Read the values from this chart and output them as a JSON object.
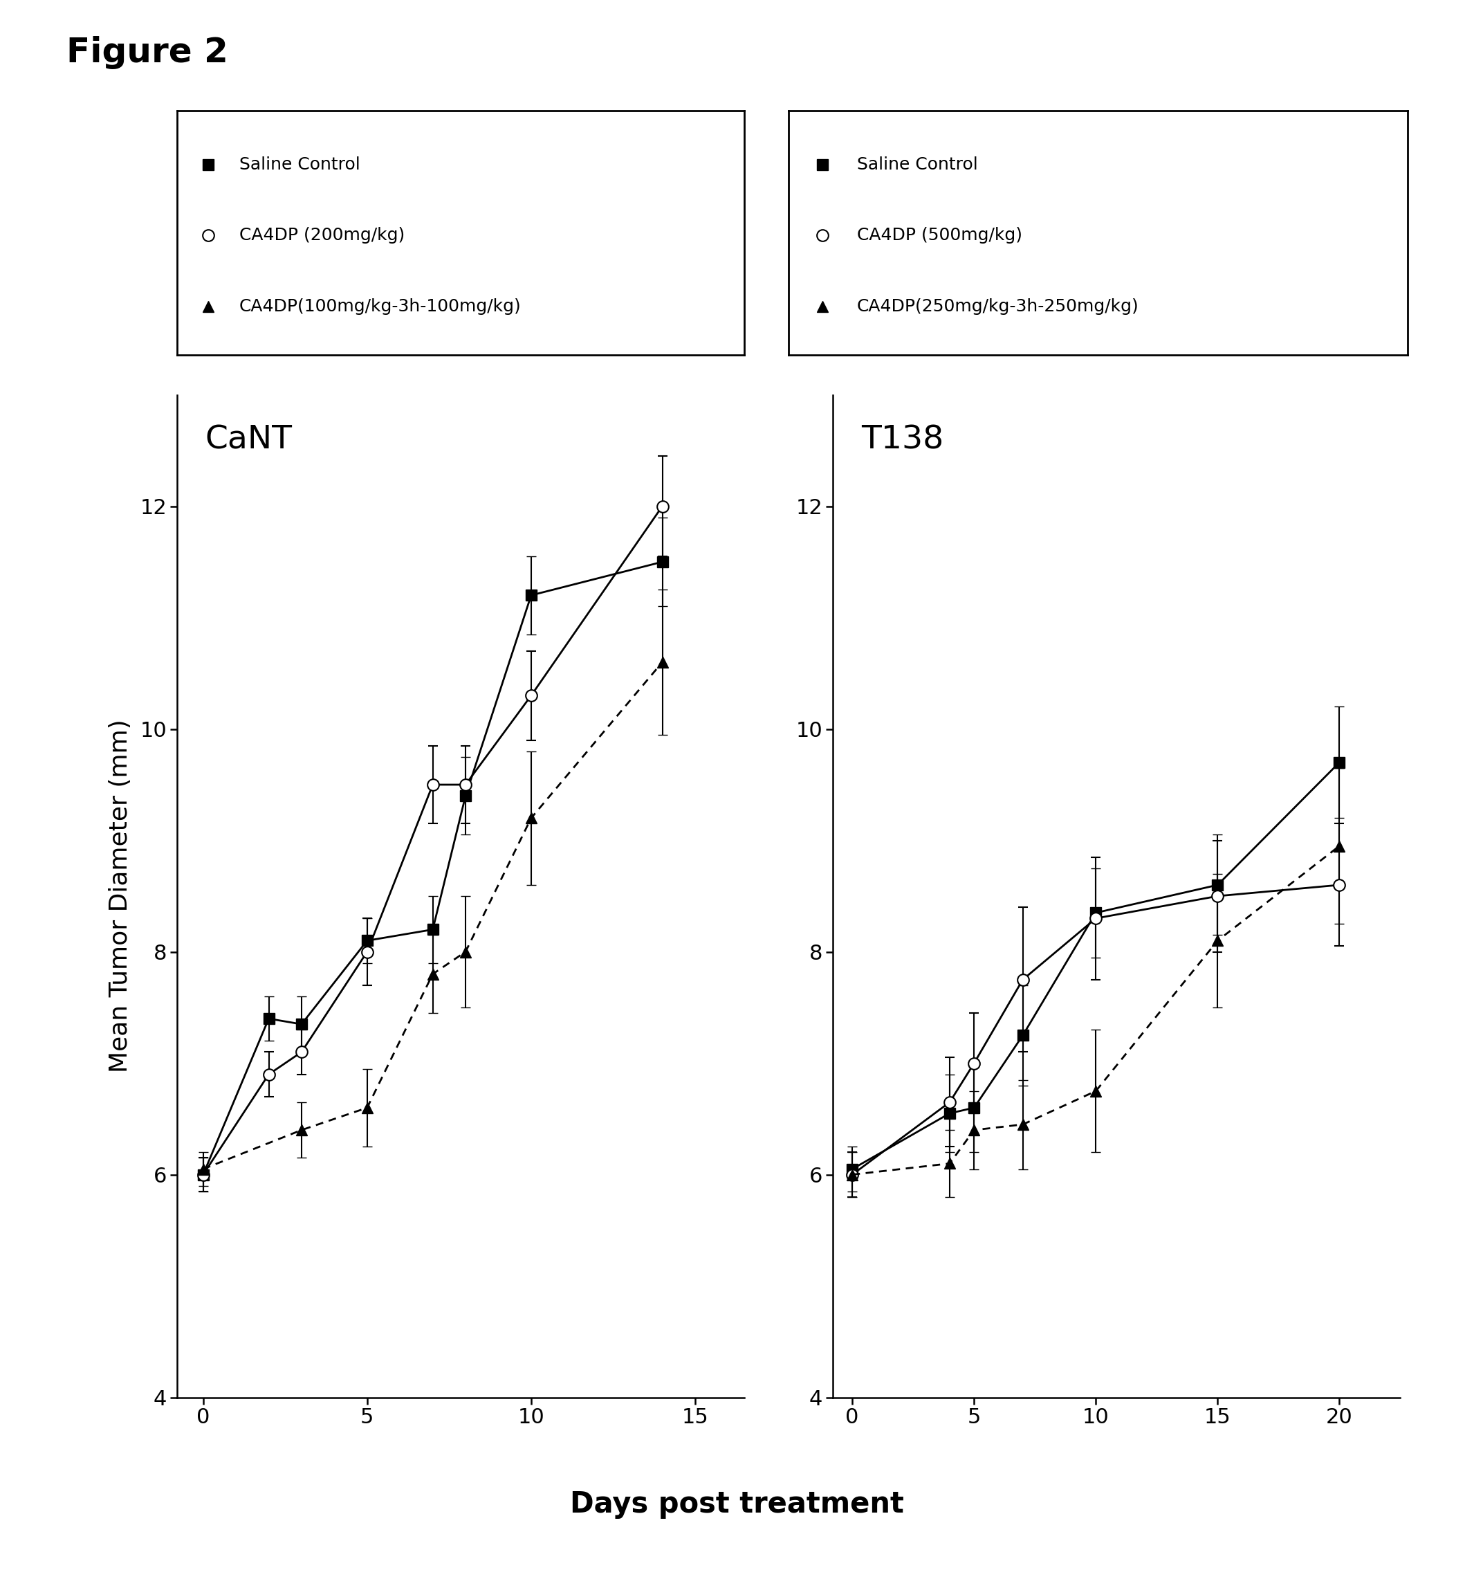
{
  "figure_title": "Figure 2",
  "xlabel": "Days post treatment",
  "ylabel": "Mean Tumor Diameter (mm)",
  "left_panel": {
    "title": "CaNT",
    "xlim": [
      -0.8,
      16.5
    ],
    "ylim": [
      4,
      13
    ],
    "yticks": [
      4,
      6,
      8,
      10,
      12
    ],
    "xticks": [
      0,
      5,
      10,
      15
    ],
    "saline": {
      "x": [
        0,
        2,
        3,
        5,
        7,
        8,
        10,
        14
      ],
      "y": [
        6.0,
        7.4,
        7.35,
        8.1,
        8.2,
        9.4,
        11.2,
        11.5
      ],
      "yerr": [
        0.15,
        0.2,
        0.25,
        0.2,
        0.3,
        0.35,
        0.35,
        0.4
      ]
    },
    "ca4dp_single": {
      "x": [
        0,
        2,
        3,
        5,
        7,
        8,
        10,
        14
      ],
      "y": [
        6.0,
        6.9,
        7.1,
        8.0,
        9.5,
        9.5,
        10.3,
        12.0
      ],
      "yerr": [
        0.15,
        0.2,
        0.2,
        0.3,
        0.35,
        0.35,
        0.4,
        0.45
      ]
    },
    "ca4dp_split": {
      "x": [
        0,
        3,
        5,
        7,
        8,
        10,
        14
      ],
      "y": [
        6.05,
        6.4,
        6.6,
        7.8,
        8.0,
        9.2,
        10.6
      ],
      "yerr": [
        0.15,
        0.25,
        0.35,
        0.35,
        0.5,
        0.6,
        0.65
      ]
    },
    "legend": {
      "saline": "Saline Control",
      "single": "CA4DP (200mg/kg)",
      "split": "CA4DP(100mg/kg-3h-100mg/kg)"
    }
  },
  "right_panel": {
    "title": "T138",
    "xlim": [
      -0.8,
      22.5
    ],
    "ylim": [
      4,
      13
    ],
    "yticks": [
      4,
      6,
      8,
      10,
      12
    ],
    "xticks": [
      0,
      5,
      10,
      15,
      20
    ],
    "saline": {
      "x": [
        0,
        4,
        5,
        7,
        10,
        15,
        20
      ],
      "y": [
        6.05,
        6.55,
        6.6,
        7.25,
        8.35,
        8.6,
        9.7
      ],
      "yerr": [
        0.2,
        0.35,
        0.4,
        0.45,
        0.4,
        0.45,
        0.5
      ]
    },
    "ca4dp_single": {
      "x": [
        0,
        4,
        5,
        7,
        10,
        15,
        20
      ],
      "y": [
        6.0,
        6.65,
        7.0,
        7.75,
        8.3,
        8.5,
        8.6
      ],
      "yerr": [
        0.2,
        0.4,
        0.45,
        0.65,
        0.55,
        0.5,
        0.55
      ]
    },
    "ca4dp_split": {
      "x": [
        0,
        4,
        5,
        7,
        10,
        15,
        20
      ],
      "y": [
        6.0,
        6.1,
        6.4,
        6.45,
        6.75,
        8.1,
        8.95
      ],
      "yerr": [
        0.2,
        0.3,
        0.35,
        0.4,
        0.55,
        0.6,
        0.7
      ]
    },
    "legend": {
      "saline": "Saline Control",
      "single": "CA4DP (500mg/kg)",
      "split": "CA4DP(250mg/kg-3h-250mg/kg)"
    }
  },
  "bg_color": "#ffffff",
  "title_fontsize": 36,
  "axis_label_fontsize": 26,
  "tick_fontsize": 22,
  "legend_fontsize": 18,
  "panel_title_fontsize": 34,
  "marker_size": 11,
  "linewidth": 2.0,
  "capsize": 5
}
